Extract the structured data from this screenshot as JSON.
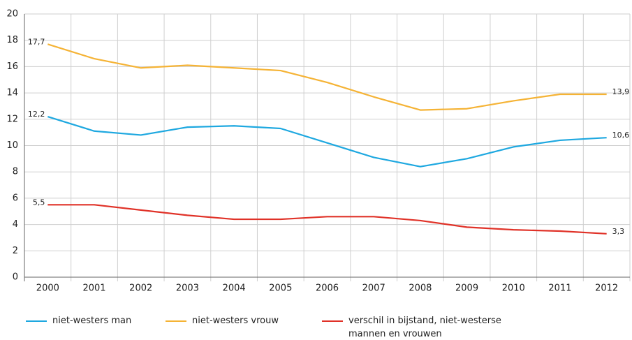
{
  "chart_data": {
    "type": "line",
    "categories": [
      "2000",
      "2001",
      "2002",
      "2003",
      "2004",
      "2005",
      "2006",
      "2007",
      "2008",
      "2009",
      "2010",
      "2011",
      "2012"
    ],
    "series": [
      {
        "name": "niet-westers man",
        "color": "#1ea8e0",
        "values": [
          12.2,
          11.1,
          10.8,
          11.4,
          11.5,
          11.3,
          10.2,
          9.1,
          8.4,
          9.0,
          9.9,
          10.4,
          10.6
        ],
        "value_labels": [
          "12,2",
          null,
          null,
          null,
          null,
          null,
          null,
          null,
          null,
          null,
          null,
          null,
          "10,6"
        ]
      },
      {
        "name": "niet-westers vrouw",
        "color": "#f5b335",
        "values": [
          17.7,
          16.6,
          15.9,
          16.1,
          15.9,
          15.7,
          14.8,
          13.7,
          12.7,
          12.8,
          13.4,
          13.9,
          13.9
        ],
        "value_labels": [
          "17,7",
          null,
          null,
          null,
          null,
          null,
          null,
          null,
          null,
          null,
          null,
          null,
          "13,9"
        ]
      },
      {
        "name": "verschil in bijstand, niet-westerse mannen en vrouwen",
        "color": "#e03228",
        "values": [
          5.5,
          5.5,
          5.1,
          4.7,
          4.4,
          4.4,
          4.6,
          4.6,
          4.3,
          3.8,
          3.6,
          3.5,
          3.3
        ],
        "value_labels": [
          "5,5",
          null,
          null,
          null,
          null,
          null,
          null,
          null,
          null,
          null,
          null,
          null,
          "3,3"
        ]
      }
    ],
    "ylim": [
      0,
      20
    ],
    "yticks": [
      0,
      2,
      4,
      6,
      8,
      10,
      12,
      14,
      16,
      18,
      20
    ],
    "grid": true
  }
}
